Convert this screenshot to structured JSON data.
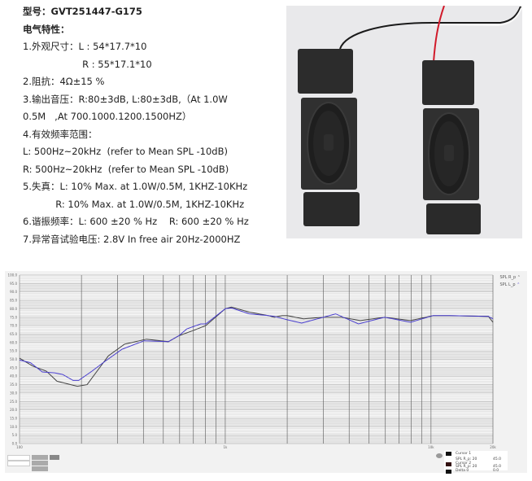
{
  "spec": {
    "model": "型号：GVT251447-G175",
    "heading": "电气特性：",
    "lines": [
      "1.外观尺寸：L : 54*17.7*10",
      "                    R : 55*17.1*10",
      "2.阻抗：4Ω±15 %",
      "3.输出音压：R:80±3dB, L:80±3dB,（At 1.0W",
      "0.5M   ,At 700.1000.1200.1500HZ）",
      "4.有效频率范围：",
      "L: 500Hz~20kHz  (refer to Mean SPL -10dB)",
      "R: 500Hz~20kHz  (refer to Mean SPL -10dB)",
      "5.失真：L: 10% Max. at 1.0W/0.5M, 1KHZ-10KHz",
      "           R: 10% Max. at 1.0W/0.5M, 1KHZ-10KHz",
      "6.谐振频率：L: 600 ±20 % Hz    R: 600 ±20 % Hz",
      "7.异常音试验电压: 2.8V In free air 20Hz-2000HZ"
    ]
  },
  "photo": {
    "wire_colors": [
      "#1a1a1a",
      "#d11a2a",
      "#e8e8e8"
    ],
    "speaker_color": "#2a2a2a"
  },
  "legend": {
    "items": [
      {
        "label": "SPL R_p",
        "color": "#444444"
      },
      {
        "label": "SPL L_p",
        "color": "#4a3fcf"
      }
    ]
  },
  "cursor_panel": {
    "rows": [
      {
        "label": "Cursor 1",
        "value": ""
      },
      {
        "label": "SPL R_p:  20",
        "value": "45.0"
      },
      {
        "label": "Cursor 2",
        "value": ""
      },
      {
        "label": "SPL R_p:  20",
        "value": "45.0"
      },
      {
        "label": "Delta      0",
        "value": "0.0"
      }
    ]
  },
  "chart_data": {
    "type": "line",
    "xscale": "log",
    "xlim": [
      100,
      20000
    ],
    "ylim": [
      0,
      100
    ],
    "x_tick_labels": [
      {
        "value": 100,
        "label": "100"
      },
      {
        "value": 1000,
        "label": "1k"
      },
      {
        "value": 10000,
        "label": "10k"
      },
      {
        "value": 20000,
        "label": "20k"
      }
    ],
    "y_ticks": [
      0,
      5,
      10,
      15,
      20,
      25,
      30,
      35,
      40,
      45,
      50,
      55,
      60,
      65,
      70,
      75,
      80,
      85,
      90,
      95,
      100
    ],
    "grid": true,
    "legend_position": "top-right",
    "series": [
      {
        "name": "SPL R_p",
        "color": "#444444",
        "x": [
          100,
          116,
          135,
          152,
          191,
          213,
          270,
          324,
          414,
          529,
          595,
          695,
          804,
          1000,
          1070,
          1310,
          1620,
          1730,
          1890,
          2000,
          2400,
          2980,
          3670,
          4530,
          5950,
          7950,
          10240,
          12300,
          19000,
          20000
        ],
        "y": [
          50.7,
          46,
          43,
          37,
          34,
          35,
          52,
          59,
          62,
          60.5,
          64,
          67,
          70,
          80,
          81,
          78,
          76,
          75,
          76,
          76,
          74,
          75,
          75,
          73,
          75,
          73,
          76,
          76,
          75.5,
          72
        ]
      },
      {
        "name": "SPL L_p",
        "color": "#4a3fcf",
        "x": [
          100,
          113,
          129,
          148,
          162,
          182,
          194,
          225,
          255,
          315,
          403,
          529,
          595,
          650,
          760,
          804,
          1000,
          1070,
          1310,
          1620,
          1730,
          2000,
          2350,
          3440,
          4440,
          5950,
          7950,
          10240,
          12300,
          19000,
          20000
        ],
        "y": [
          49.5,
          48,
          42.5,
          42,
          41,
          37.5,
          37.5,
          43,
          48,
          56,
          61,
          60.5,
          64,
          68,
          71,
          71,
          80,
          80.5,
          77,
          76,
          75.5,
          73.5,
          71.5,
          77,
          71,
          75,
          72,
          76,
          76,
          75.5,
          74
        ]
      }
    ]
  }
}
